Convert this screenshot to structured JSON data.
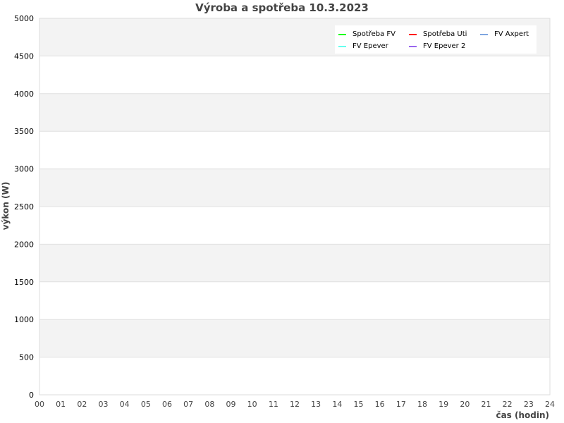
{
  "chart_data": {
    "type": "line",
    "title": "Výroba a spotřeba 10.3.2023",
    "xlabel": "čas (hodin)",
    "ylabel": "výkon (W)",
    "xlim": [
      0,
      24
    ],
    "ylim": [
      0,
      5000
    ],
    "x_ticks": [
      "00",
      "01",
      "02",
      "03",
      "04",
      "05",
      "06",
      "07",
      "08",
      "09",
      "10",
      "11",
      "12",
      "13",
      "14",
      "15",
      "16",
      "17",
      "18",
      "19",
      "20",
      "21",
      "22",
      "23",
      "24"
    ],
    "y_ticks": [
      0,
      500,
      1000,
      1500,
      2000,
      2500,
      3000,
      3500,
      4000,
      4500,
      5000
    ],
    "grid": true,
    "legend_position": "top-right",
    "series": [
      {
        "name": "Spotřeba FV",
        "color": "#00ff00",
        "values": []
      },
      {
        "name": "Spotřeba Uti",
        "color": "#ff0000",
        "values": []
      },
      {
        "name": "FV Axpert",
        "color": "#7fa6e0",
        "values": []
      },
      {
        "name": "FV Epever",
        "color": "#66ffee",
        "values": []
      },
      {
        "name": "FV Epever 2",
        "color": "#9966ee",
        "values": []
      }
    ]
  }
}
